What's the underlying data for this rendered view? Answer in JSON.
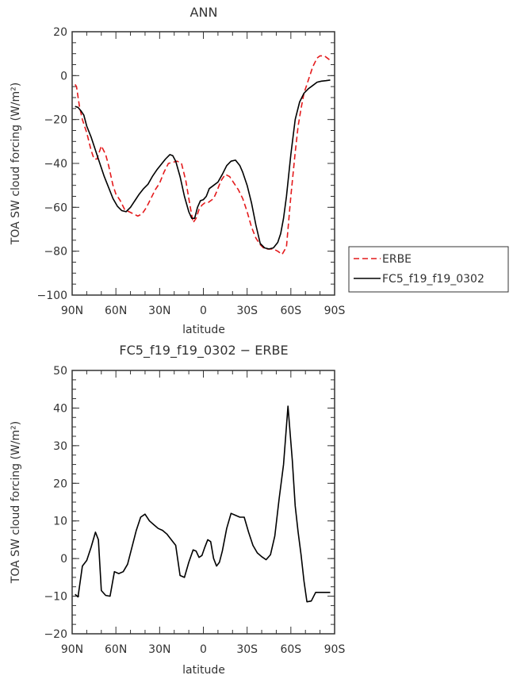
{
  "chart_data": [
    {
      "type": "line",
      "title": "ANN",
      "xlabel": "latitude",
      "ylabel": "TOA SW cloud forcing (W/m²)",
      "xlim": [
        90,
        -90
      ],
      "ylim": [
        -100,
        20
      ],
      "x_ticks": [
        {
          "value": 90,
          "label": "90N"
        },
        {
          "value": 60,
          "label": "60N"
        },
        {
          "value": 30,
          "label": "30N"
        },
        {
          "value": 0,
          "label": "0"
        },
        {
          "value": -30,
          "label": "30S"
        },
        {
          "value": -60,
          "label": "60S"
        },
        {
          "value": -90,
          "label": "90S"
        }
      ],
      "y_ticks": [
        {
          "value": 20,
          "label": "20"
        },
        {
          "value": 0,
          "label": "0"
        },
        {
          "value": -20,
          "label": "−20"
        },
        {
          "value": -40,
          "label": "−40"
        },
        {
          "value": -60,
          "label": "−60"
        },
        {
          "value": -80,
          "label": "−80"
        },
        {
          "value": -100,
          "label": "−100"
        }
      ],
      "legend_position": "right",
      "series": [
        {
          "name": "ERBE",
          "color": "#e41a1c",
          "dash": true,
          "x": [
            88,
            87,
            85,
            83,
            80,
            77,
            75,
            73,
            70,
            67,
            65,
            62,
            60,
            57,
            54,
            51,
            48,
            45,
            42,
            39,
            36,
            33,
            30,
            27,
            24,
            21,
            18,
            15,
            12,
            9,
            7,
            5,
            3,
            1,
            -1,
            -3,
            -5,
            -7,
            -9,
            -12,
            -15,
            -18,
            -21,
            -24,
            -27,
            -30,
            -33,
            -36,
            -39,
            -42,
            -45,
            -48,
            -51,
            -54,
            -57,
            -60,
            -63,
            -65,
            -67,
            -69,
            -72,
            -75,
            -78,
            -80,
            -83,
            -85,
            -87
          ],
          "y": [
            -4,
            -5,
            -14,
            -20,
            -26,
            -34,
            -38,
            -38,
            -32,
            -36,
            -41,
            -50,
            -54,
            -57,
            -61,
            -62,
            -63,
            -64,
            -63,
            -60,
            -56,
            -52,
            -49,
            -44,
            -40,
            -39.5,
            -39,
            -40,
            -48,
            -60,
            -67,
            -65,
            -61,
            -59,
            -58,
            -58,
            -57,
            -56,
            -53,
            -48,
            -45,
            -46,
            -49,
            -52,
            -56,
            -62,
            -69,
            -74,
            -77,
            -79,
            -79,
            -79,
            -80,
            -81.5,
            -78,
            -55,
            -35,
            -23,
            -15,
            -8,
            -2,
            4,
            8,
            9,
            9,
            8,
            7
          ]
        },
        {
          "name": "FC5_f19_f19_0302",
          "color": "#000000",
          "dash": false,
          "x": [
            88,
            86,
            84,
            82,
            80,
            77,
            74,
            71,
            68,
            65,
            62,
            59,
            56,
            53,
            50,
            47,
            44,
            41,
            38,
            35,
            32,
            29,
            26,
            23,
            21,
            19,
            16,
            13,
            10,
            8,
            6,
            4,
            2,
            0,
            -2,
            -4,
            -7,
            -10,
            -13,
            -16,
            -19,
            -22,
            -25,
            -27,
            -30,
            -33,
            -36,
            -39,
            -42,
            -45,
            -48,
            -51,
            -53,
            -55,
            -57,
            -60,
            -63,
            -66,
            -69,
            -72,
            -75,
            -78,
            -81,
            -84,
            -87
          ],
          "y": [
            -14,
            -14.5,
            -16,
            -18,
            -23,
            -28,
            -34,
            -40,
            -46,
            -51,
            -56,
            -59.5,
            -61.5,
            -62,
            -60,
            -57,
            -54,
            -51.5,
            -49.5,
            -46,
            -43,
            -40.5,
            -38,
            -36,
            -36.5,
            -39,
            -46,
            -55,
            -62,
            -65,
            -65,
            -60,
            -57,
            -56.5,
            -55,
            -51.5,
            -50,
            -48.5,
            -45,
            -41,
            -39,
            -38.5,
            -41,
            -44,
            -50,
            -58,
            -68,
            -76.5,
            -78.5,
            -79,
            -78.5,
            -76,
            -72,
            -65,
            -55,
            -36,
            -20,
            -12,
            -8,
            -6,
            -4.5,
            -3,
            -2.5,
            -2.3,
            -2
          ]
        }
      ]
    },
    {
      "type": "line",
      "title": "FC5_f19_f19_0302 − ERBE",
      "xlabel": "latitude",
      "ylabel": "TOA SW cloud forcing (W/m²)",
      "xlim": [
        90,
        -90
      ],
      "ylim": [
        -20,
        50
      ],
      "x_ticks": [
        {
          "value": 90,
          "label": "90N"
        },
        {
          "value": 60,
          "label": "60N"
        },
        {
          "value": 30,
          "label": "30N"
        },
        {
          "value": 0,
          "label": "0"
        },
        {
          "value": -30,
          "label": "30S"
        },
        {
          "value": -60,
          "label": "60S"
        },
        {
          "value": -90,
          "label": "90S"
        }
      ],
      "y_ticks": [
        {
          "value": 50,
          "label": "50"
        },
        {
          "value": 40,
          "label": "40"
        },
        {
          "value": 30,
          "label": "30"
        },
        {
          "value": 20,
          "label": "20"
        },
        {
          "value": 10,
          "label": "10"
        },
        {
          "value": 0,
          "label": "0"
        },
        {
          "value": -10,
          "label": "−10"
        },
        {
          "value": -20,
          "label": "−20"
        }
      ],
      "series": [
        {
          "color": "#000000",
          "dash": false,
          "x": [
            88,
            86,
            83,
            80,
            77,
            74,
            72,
            70,
            67,
            64,
            61,
            58,
            55,
            52,
            49,
            46,
            43,
            40,
            37,
            34,
            31,
            28,
            25,
            22,
            19,
            16,
            13,
            10,
            7,
            5,
            3,
            1,
            -1,
            -3,
            -5,
            -7,
            -9,
            -11,
            -13,
            -16,
            -19,
            -22,
            -25,
            -28,
            -31,
            -34,
            -37,
            -40,
            -43,
            -46,
            -49,
            -52,
            -55,
            -58,
            -61,
            -63,
            -65,
            -67,
            -69,
            -71,
            -74,
            -77,
            -80,
            -83,
            -85,
            -87
          ],
          "y": [
            -9.5,
            -10.2,
            -2,
            -0.5,
            3,
            7,
            5,
            -8.5,
            -9.8,
            -10,
            -3.5,
            -4,
            -3.5,
            -1.5,
            3,
            7.5,
            11,
            11.8,
            10,
            9,
            8,
            7.5,
            6.5,
            5,
            3.5,
            -4.5,
            -5,
            -1,
            2.3,
            2,
            0.3,
            0.8,
            3,
            5,
            4.5,
            0,
            -2,
            -1,
            2,
            8,
            12,
            11.5,
            11,
            11,
            7,
            3.5,
            1.5,
            0.5,
            -0.3,
            1,
            6,
            16,
            25,
            40.5,
            26,
            14,
            7,
            1,
            -6,
            -11.5,
            -11.3,
            -9,
            -9,
            -9,
            -9,
            -9
          ]
        }
      ]
    }
  ]
}
